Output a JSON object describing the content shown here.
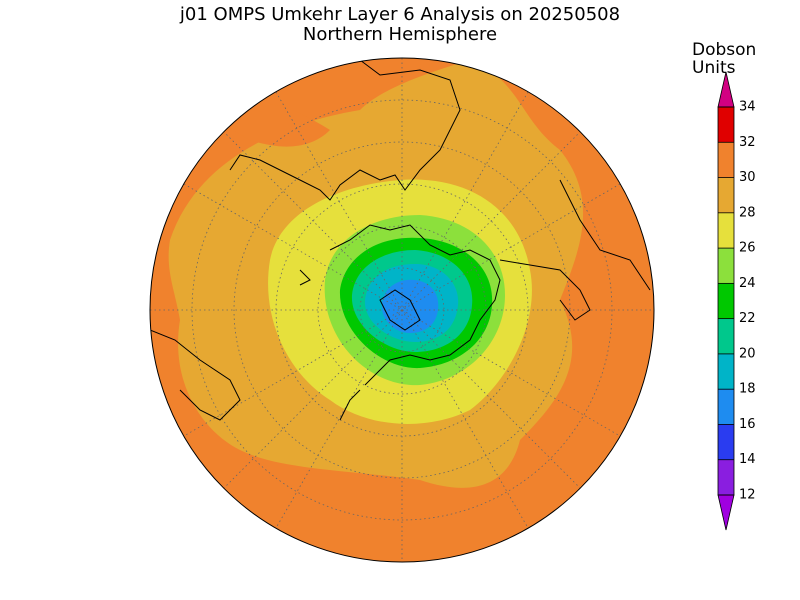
{
  "header": {
    "title": "j01 OMPS Umkehr Layer 6 Analysis on 20250508",
    "subtitle": "Northern Hemisphere"
  },
  "colorbar": {
    "label": [
      "Dobson",
      "Units"
    ],
    "ticks": [
      12,
      14,
      16,
      18,
      20,
      22,
      24,
      26,
      28,
      30,
      32,
      34
    ],
    "colors": [
      "#8a1ee0",
      "#2a3cf0",
      "#1e8cf0",
      "#00b4c8",
      "#00c88c",
      "#00c800",
      "#8ce03c",
      "#e6e03c",
      "#e6a832",
      "#f0822d",
      "#e00000"
    ],
    "under_color": "#a000e0",
    "over_color": "#d20082"
  }
}
